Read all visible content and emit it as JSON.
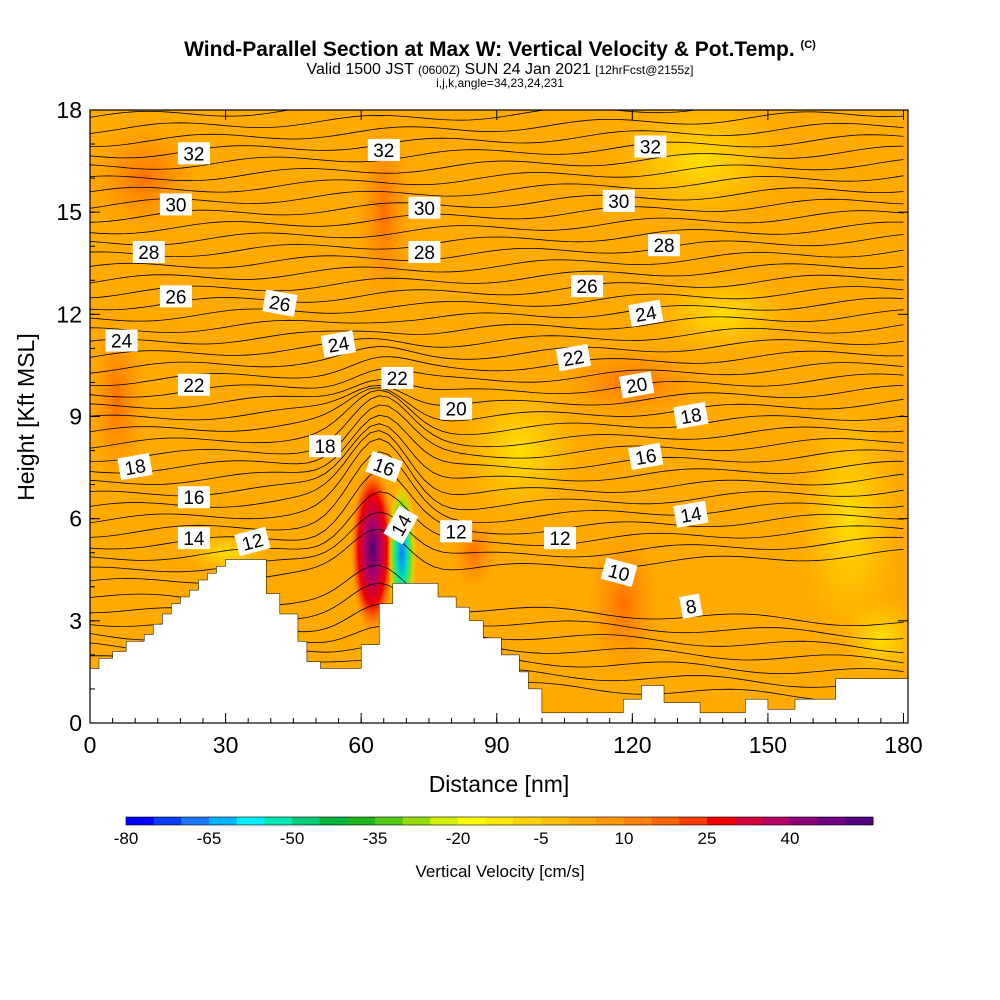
{
  "header": {
    "title": "Wind-Parallel Section at Max W: Vertical Velocity & Pot.Temp.",
    "copyright": "(C)",
    "valid_prefix": "Valid 1500 JST",
    "valid_utc": "(0600Z)",
    "valid_date": "SUN 24 Jan 2021",
    "forecast": "[12hrFcst@2155z]",
    "indices": "i,j,k,angle=34,23,24,231"
  },
  "chart_data": {
    "type": "heatmap",
    "xlabel": "Distance [nm]",
    "ylabel": "Height [Kft MSL]",
    "xlim": [
      0,
      181
    ],
    "ylim": [
      0,
      18
    ],
    "x_ticks": [
      "0",
      "30",
      "60",
      "90",
      "120",
      "150",
      "180"
    ],
    "y_ticks": [
      "0",
      "3",
      "6",
      "9",
      "12",
      "15",
      "18"
    ],
    "terrain": [
      [
        0,
        1.6
      ],
      [
        2,
        1.6
      ],
      [
        2,
        1.9
      ],
      [
        5,
        1.9
      ],
      [
        5,
        2.1
      ],
      [
        8,
        2.1
      ],
      [
        8,
        2.4
      ],
      [
        12,
        2.4
      ],
      [
        12,
        2.6
      ],
      [
        14,
        2.6
      ],
      [
        14,
        2.9
      ],
      [
        16,
        2.9
      ],
      [
        16,
        3.2
      ],
      [
        18,
        3.2
      ],
      [
        18,
        3.5
      ],
      [
        20,
        3.5
      ],
      [
        20,
        3.7
      ],
      [
        22,
        3.7
      ],
      [
        22,
        3.9
      ],
      [
        24,
        3.9
      ],
      [
        24,
        4.2
      ],
      [
        26,
        4.2
      ],
      [
        26,
        4.4
      ],
      [
        28,
        4.4
      ],
      [
        28,
        4.6
      ],
      [
        30,
        4.6
      ],
      [
        30,
        4.8
      ],
      [
        39,
        4.8
      ],
      [
        39,
        3.8
      ],
      [
        42,
        3.8
      ],
      [
        42,
        3.2
      ],
      [
        46,
        3.2
      ],
      [
        46,
        2.4
      ],
      [
        48,
        2.4
      ],
      [
        48,
        1.8
      ],
      [
        51,
        1.8
      ],
      [
        51,
        1.6
      ],
      [
        60,
        1.6
      ],
      [
        60,
        2.3
      ],
      [
        64,
        2.3
      ],
      [
        64,
        3.5
      ],
      [
        67,
        3.5
      ],
      [
        67,
        4.1
      ],
      [
        77,
        4.1
      ],
      [
        77,
        3.7
      ],
      [
        81,
        3.7
      ],
      [
        81,
        3.4
      ],
      [
        84,
        3.4
      ],
      [
        84,
        3.0
      ],
      [
        87,
        3.0
      ],
      [
        87,
        2.5
      ],
      [
        91,
        2.5
      ],
      [
        91,
        2.0
      ],
      [
        95,
        2.0
      ],
      [
        95,
        1.5
      ],
      [
        97,
        1.5
      ],
      [
        97,
        1.0
      ],
      [
        100,
        1.0
      ],
      [
        100,
        0.3
      ],
      [
        118,
        0.3
      ],
      [
        118,
        0.7
      ],
      [
        122,
        0.7
      ],
      [
        122,
        1.1
      ],
      [
        127,
        1.1
      ],
      [
        127,
        0.6
      ],
      [
        135,
        0.6
      ],
      [
        135,
        0.3
      ],
      [
        145,
        0.3
      ],
      [
        145,
        0.7
      ],
      [
        150,
        0.7
      ],
      [
        150,
        0.4
      ],
      [
        156,
        0.4
      ],
      [
        156,
        0.7
      ],
      [
        165,
        0.7
      ],
      [
        165,
        1.3
      ],
      [
        181,
        1.3
      ]
    ],
    "theta_labels": [
      {
        "text": "32",
        "x": 23,
        "y": 16.7,
        "angle": 0
      },
      {
        "text": "32",
        "x": 65,
        "y": 16.8,
        "angle": 0
      },
      {
        "text": "32",
        "x": 124,
        "y": 16.9,
        "angle": 0
      },
      {
        "text": "30",
        "x": 19,
        "y": 15.2,
        "angle": 0
      },
      {
        "text": "30",
        "x": 74,
        "y": 15.1,
        "angle": 0
      },
      {
        "text": "30",
        "x": 117,
        "y": 15.3,
        "angle": 0
      },
      {
        "text": "28",
        "x": 13,
        "y": 13.8,
        "angle": 0
      },
      {
        "text": "28",
        "x": 74,
        "y": 13.8,
        "angle": 0
      },
      {
        "text": "28",
        "x": 127,
        "y": 14.0,
        "angle": 0
      },
      {
        "text": "26",
        "x": 19,
        "y": 12.5,
        "angle": 0
      },
      {
        "text": "26",
        "x": 42,
        "y": 12.3,
        "angle": 10
      },
      {
        "text": "26",
        "x": 110,
        "y": 12.8,
        "angle": 0
      },
      {
        "text": "24",
        "x": 7,
        "y": 11.2,
        "angle": 0
      },
      {
        "text": "24",
        "x": 55,
        "y": 11.1,
        "angle": -10
      },
      {
        "text": "24",
        "x": 123,
        "y": 12.0,
        "angle": -10
      },
      {
        "text": "22",
        "x": 23,
        "y": 9.9,
        "angle": 0
      },
      {
        "text": "22",
        "x": 68,
        "y": 10.1,
        "angle": 0
      },
      {
        "text": "22",
        "x": 107,
        "y": 10.7,
        "angle": -10
      },
      {
        "text": "20",
        "x": 81,
        "y": 9.2,
        "angle": 0
      },
      {
        "text": "20",
        "x": 121,
        "y": 9.9,
        "angle": -10
      },
      {
        "text": "18",
        "x": 10,
        "y": 7.5,
        "angle": -10
      },
      {
        "text": "18",
        "x": 52,
        "y": 8.1,
        "angle": 0
      },
      {
        "text": "18",
        "x": 133,
        "y": 9.0,
        "angle": -10
      },
      {
        "text": "16",
        "x": 23,
        "y": 6.6,
        "angle": 0
      },
      {
        "text": "16",
        "x": 65,
        "y": 7.5,
        "angle": 20
      },
      {
        "text": "16",
        "x": 123,
        "y": 7.8,
        "angle": -10
      },
      {
        "text": "14",
        "x": 23,
        "y": 5.4,
        "angle": 0
      },
      {
        "text": "14",
        "x": 69,
        "y": 5.8,
        "angle": -60
      },
      {
        "text": "14",
        "x": 133,
        "y": 6.1,
        "angle": -10
      },
      {
        "text": "12",
        "x": 36,
        "y": 5.3,
        "angle": -15
      },
      {
        "text": "12",
        "x": 81,
        "y": 5.6,
        "angle": 0
      },
      {
        "text": "12",
        "x": 104,
        "y": 5.4,
        "angle": 0
      },
      {
        "text": "10",
        "x": 117,
        "y": 4.4,
        "angle": 15
      },
      {
        "text": "8",
        "x": 133,
        "y": 3.4,
        "angle": -10
      }
    ],
    "colorbar": {
      "label": "Vertical Velocity [cm/s]",
      "tick_labels": [
        "-80",
        "-65",
        "-50",
        "-35",
        "-20",
        "-5",
        "10",
        "25",
        "40"
      ],
      "min": -80,
      "max": 55,
      "step": 5,
      "colors": [
        "#0000ff",
        "#0a3cff",
        "#1c78ff",
        "#00b4ff",
        "#00f0ff",
        "#00e6b4",
        "#00cc78",
        "#00b43c",
        "#1eb41e",
        "#50c814",
        "#96dc0a",
        "#d2f000",
        "#ffff00",
        "#ffe600",
        "#ffd200",
        "#ffbe00",
        "#ffaa00",
        "#ff9600",
        "#ff8200",
        "#ff6400",
        "#ff3c00",
        "#f00000",
        "#d2003c",
        "#b40064",
        "#8c0078",
        "#6e0082",
        "#500078"
      ]
    }
  }
}
